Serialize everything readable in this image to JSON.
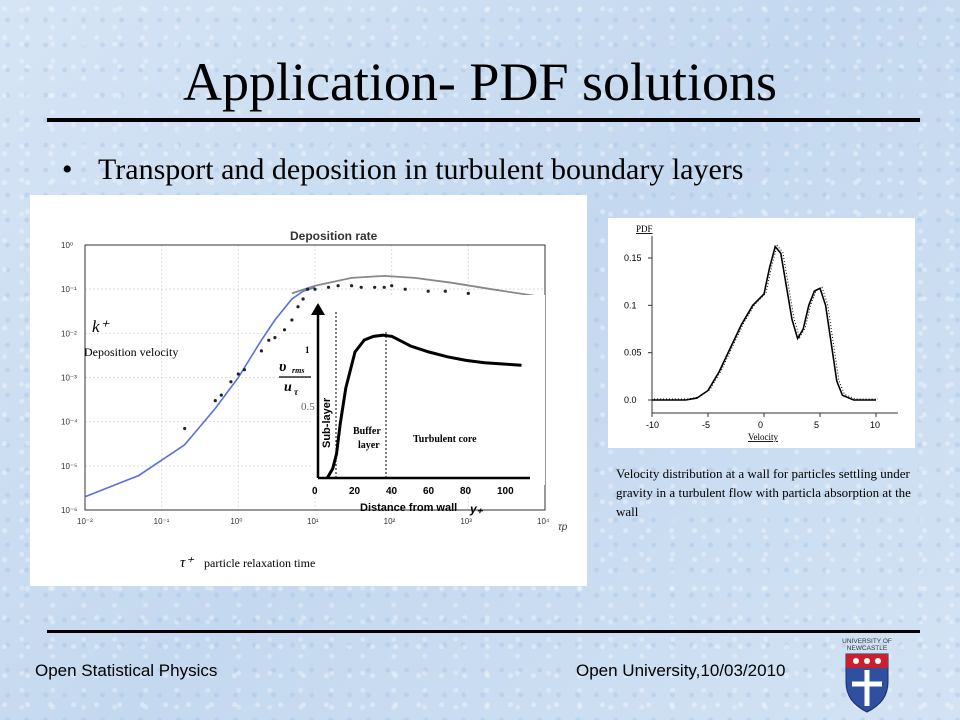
{
  "slide": {
    "title": "Application- PDF solutions",
    "bullet": "Transport and deposition in turbulent boundary layers",
    "footer_left": "Open Statistical Physics",
    "footer_right": "Open University,10/03/2010",
    "logo_text": [
      "UNIVERSITY OF",
      "NEWCASTLE"
    ]
  },
  "chart_data": [
    {
      "type": "line",
      "title": "Deposition rate",
      "scale": "log-log",
      "xlim": [
        0.01,
        10000
      ],
      "ylim": [
        1e-06,
        1
      ],
      "xticks": [
        "10⁻²",
        "10⁻¹",
        "10⁰",
        "10¹",
        "10²",
        "10³",
        "10⁴"
      ],
      "yticks": [
        "10⁰",
        "10⁻¹",
        "10⁻²",
        "10⁻³",
        "10⁻⁴",
        "10⁻⁵",
        "10⁻⁶"
      ],
      "xlabel": "τp",
      "ylabel_symbol": "k⁺",
      "ylabel_text": "Deposition velocity",
      "xlabel_symbol": "τ⁺",
      "xlabel_text": "particle relaxation time",
      "series": [
        {
          "x": [
            0.01,
            0.05,
            0.2,
            0.5,
            1,
            2,
            3,
            5,
            7,
            10
          ],
          "y": [
            2e-06,
            6e-06,
            3e-05,
            0.0002,
            0.001,
            0.007,
            0.02,
            0.06,
            0.09,
            0.11
          ]
        },
        {
          "x": [
            5,
            10,
            30,
            80,
            200,
            600,
            2000,
            10000
          ],
          "y": [
            0.08,
            0.12,
            0.18,
            0.2,
            0.18,
            0.14,
            0.1,
            0.065
          ]
        },
        {
          "x": [
            0.2,
            0.5,
            0.6,
            0.8,
            1.0,
            1.2,
            2.0,
            2.5,
            3,
            4,
            5,
            6,
            7,
            8,
            10,
            15,
            20,
            30,
            40,
            60,
            80,
            100,
            150,
            300,
            500,
            1000
          ],
          "y": [
            7e-05,
            0.0003,
            0.0004,
            0.0008,
            0.0012,
            0.0015,
            0.004,
            0.007,
            0.008,
            0.012,
            0.02,
            0.04,
            0.06,
            0.1,
            0.1,
            0.11,
            0.12,
            0.12,
            0.11,
            0.11,
            0.11,
            0.12,
            0.1,
            0.09,
            0.09,
            0.08
          ]
        }
      ],
      "inset": {
        "type": "line",
        "xlabel": "Distance from wall",
        "xlabel_symbol": "y₊",
        "xlim": [
          0,
          100
        ],
        "xticks": [
          0,
          20,
          40,
          60,
          80,
          100
        ],
        "yticks": [
          "1",
          "0.5"
        ],
        "ylabel_top": "υ",
        "ylabel_sub": "rms",
        "ylabel_bottom": "u",
        "ylabel_tau": "τ",
        "regions": [
          "Sub-layer",
          "Buffer",
          "layer",
          "Turbulent core"
        ],
        "x": [
          5,
          8,
          10,
          12,
          15,
          20,
          25,
          30,
          35,
          40,
          45,
          50,
          60,
          70,
          80,
          90,
          100,
          110
        ],
        "y": [
          0.0,
          0.08,
          0.2,
          0.45,
          0.75,
          1.05,
          1.15,
          1.18,
          1.19,
          1.18,
          1.14,
          1.1,
          1.05,
          1.01,
          0.98,
          0.96,
          0.95,
          0.94
        ]
      }
    },
    {
      "type": "line",
      "ylabel": "PDF",
      "xlabel": "Velocity",
      "xlim": [
        -10,
        10
      ],
      "ylim": [
        0,
        0.17
      ],
      "xticks": [
        -10,
        -5,
        0,
        5,
        10
      ],
      "yticks": [
        "0.0",
        "0.05",
        "0.1",
        "0.15"
      ],
      "x": [
        -10,
        -7,
        -6,
        -5,
        -4,
        -3,
        -2,
        -1,
        0,
        0.5,
        1,
        1.5,
        2,
        2.5,
        3,
        3.5,
        4,
        4.5,
        5,
        5.5,
        6,
        6.5,
        7,
        8,
        10
      ],
      "y": [
        0,
        0,
        0.002,
        0.01,
        0.03,
        0.055,
        0.08,
        0.1,
        0.112,
        0.14,
        0.162,
        0.155,
        0.12,
        0.085,
        0.065,
        0.075,
        0.1,
        0.115,
        0.118,
        0.1,
        0.06,
        0.02,
        0.005,
        0,
        0
      ]
    }
  ],
  "caption": "Velocity distribution at a wall for particles settling under gravity in a turbulent flow with particla absorption at the wall"
}
